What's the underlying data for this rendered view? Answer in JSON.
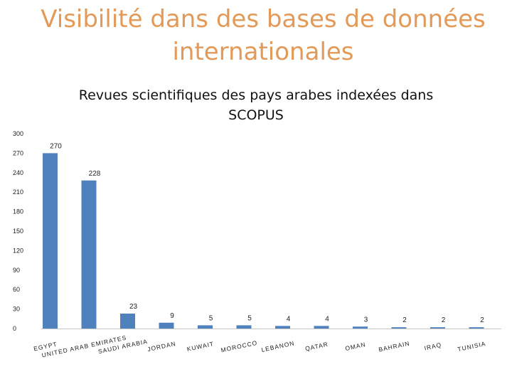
{
  "slide": {
    "title_line1": "Visibilité dans des bases de données",
    "title_line2": "internationales"
  },
  "chart_data": {
    "type": "bar",
    "title_line1": "Revues scientifiques des pays arabes indexées dans",
    "title_line2": "SCOPUS",
    "categories": [
      "EGYPT",
      "UNITED ARAB EMIRATES",
      "SAUDI ARABIA",
      "JORDAN",
      "KUWAIT",
      "MOROCCO",
      "LEBANON",
      "QATAR",
      "OMAN",
      "BAHRAIN",
      "IRAQ",
      "TUNISIA"
    ],
    "category_labels": [
      [
        "EGYPT"
      ],
      [
        "UNITED ARAB EMIRATES"
      ],
      [
        "SAUDI ARABIA"
      ],
      [
        "JORDAN"
      ],
      [
        "KUWAIT"
      ],
      [
        "MOROCCO"
      ],
      [
        "LEBANON"
      ],
      [
        "QATAR"
      ],
      [
        "OMAN"
      ],
      [
        "BAHRAIN"
      ],
      [
        "IRAQ"
      ],
      [
        "TUNISIA"
      ]
    ],
    "values": [
      270,
      228,
      23,
      9,
      5,
      5,
      4,
      4,
      3,
      2,
      2,
      2
    ],
    "ylim": [
      0,
      300
    ],
    "yticks": [
      0,
      30,
      60,
      90,
      120,
      150,
      180,
      210,
      240,
      270,
      300
    ],
    "grid": false,
    "legend": "none",
    "bar_color": "#4F81BD"
  }
}
